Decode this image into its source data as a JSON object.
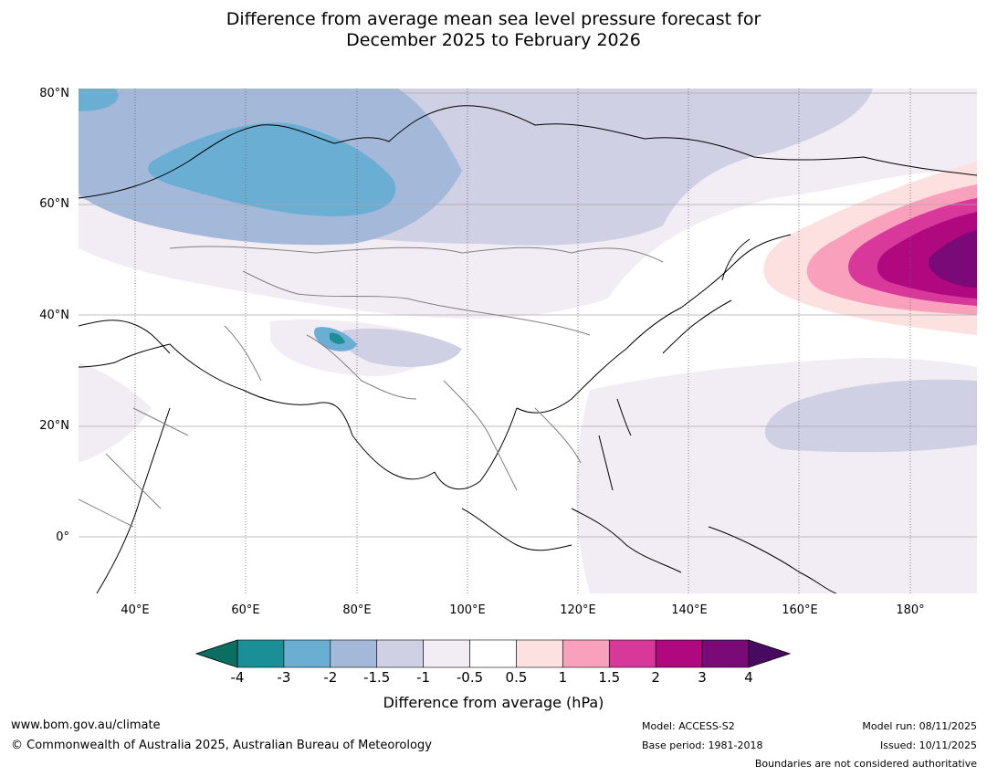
{
  "title_line1": "Difference from average mean sea level pressure forecast for",
  "title_line2": "December 2025 to February 2026",
  "lat_labels": [
    "80°N",
    "60°N",
    "40°N",
    "20°N",
    "0°"
  ],
  "lon_labels": [
    "40°E",
    "60°E",
    "80°E",
    "100°E",
    "120°E",
    "140°E",
    "160°E",
    "180°"
  ],
  "colorbar": {
    "ticks": [
      "-4",
      "-3",
      "-2",
      "-1.5",
      "-1",
      "-0.5",
      "0.5",
      "1",
      "1.5",
      "2",
      "3",
      "4"
    ],
    "colors": [
      "#1a8f98",
      "#6aaed4",
      "#a4b9da",
      "#cfd0e4",
      "#f2ecf4",
      "#ffffff",
      "#fde0e0",
      "#f8a0bc",
      "#d8389a",
      "#b0087e",
      "#7a0a78"
    ],
    "low_extend_color": "#0a6e62",
    "high_extend_color": "#4a0a62",
    "label": "Difference from average (hPa)"
  },
  "footer": {
    "url": "www.bom.gov.au/climate",
    "copyright": "© Commonwealth of Australia 2025, Australian Bureau of Meteorology",
    "model": "Model: ACCESS-S2",
    "base_period": "Base period: 1981-2018",
    "model_run": "Model run: 08/11/2025",
    "issued": "Issued: 10/11/2025",
    "disclaimer": "Boundaries are not considered authoritative"
  }
}
